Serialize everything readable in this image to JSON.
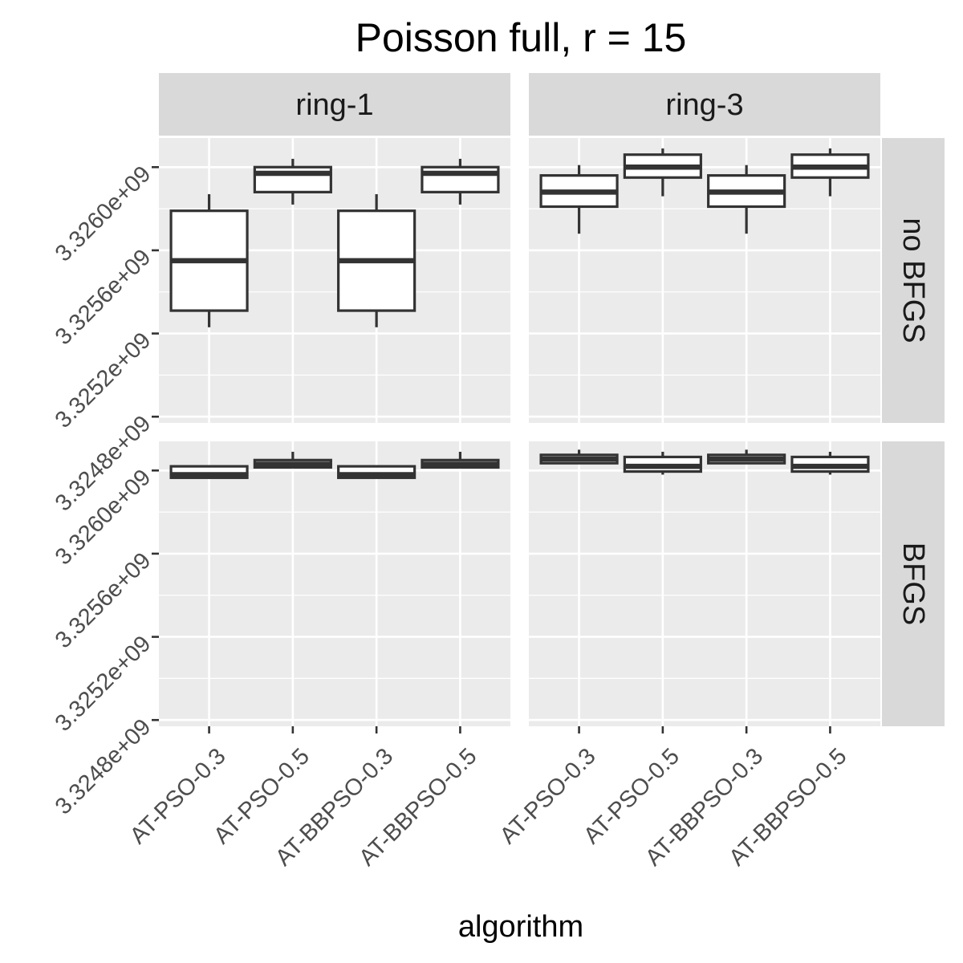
{
  "chart_data": {
    "type": "boxplot",
    "title": "Poisson full, r = 15",
    "xlabel": "algorithm",
    "ylabel": "",
    "categories": [
      "AT-PSO-0.3",
      "AT-PSO-0.5",
      "AT-BBPSO-0.3",
      "AT-BBPSO-0.5"
    ],
    "facet_cols": [
      "ring-1",
      "ring-3"
    ],
    "facet_rows": [
      "no BFGS",
      "BFGS"
    ],
    "y_ticks": [
      {
        "value": 3324800000,
        "label": "3.3248e+09"
      },
      {
        "value": 3325200000,
        "label": "3.3252e+09"
      },
      {
        "value": 3325600000,
        "label": "3.3256e+09"
      },
      {
        "value": 3326000000,
        "label": "3.3260e+09"
      }
    ],
    "ylim": [
      3324770000,
      3326140000
    ],
    "grid": true,
    "panels": [
      {
        "row": "no BFGS",
        "col": "ring-1",
        "boxes": [
          {
            "category": "AT-PSO-0.3",
            "min": 3325230000,
            "q1": 3325310000,
            "median": 3325550000,
            "q3": 3325790000,
            "max": 3325870000
          },
          {
            "category": "AT-PSO-0.5",
            "min": 3325820000,
            "q1": 3325880000,
            "median": 3325970000,
            "q3": 3326000000,
            "max": 3326040000
          },
          {
            "category": "AT-BBPSO-0.3",
            "min": 3325230000,
            "q1": 3325310000,
            "median": 3325550000,
            "q3": 3325790000,
            "max": 3325870000
          },
          {
            "category": "AT-BBPSO-0.5",
            "min": 3325820000,
            "q1": 3325880000,
            "median": 3325970000,
            "q3": 3326000000,
            "max": 3326040000
          }
        ]
      },
      {
        "row": "no BFGS",
        "col": "ring-3",
        "boxes": [
          {
            "category": "AT-PSO-0.3",
            "min": 3325680000,
            "q1": 3325810000,
            "median": 3325880000,
            "q3": 3325960000,
            "max": 3326010000
          },
          {
            "category": "AT-PSO-0.5",
            "min": 3325860000,
            "q1": 3325950000,
            "median": 3326000000,
            "q3": 3326060000,
            "max": 3326090000
          },
          {
            "category": "AT-BBPSO-0.3",
            "min": 3325680000,
            "q1": 3325810000,
            "median": 3325880000,
            "q3": 3325960000,
            "max": 3326010000
          },
          {
            "category": "AT-BBPSO-0.5",
            "min": 3325860000,
            "q1": 3325950000,
            "median": 3326000000,
            "q3": 3326060000,
            "max": 3326090000
          }
        ]
      },
      {
        "row": "BFGS",
        "col": "ring-1",
        "boxes": [
          {
            "category": "AT-PSO-0.3",
            "min": 3325960000,
            "q1": 3325965000,
            "median": 3325980000,
            "q3": 3326020000,
            "max": 3326025000
          },
          {
            "category": "AT-PSO-0.5",
            "min": 3326010000,
            "q1": 3326015000,
            "median": 3326030000,
            "q3": 3326050000,
            "max": 3326090000
          },
          {
            "category": "AT-BBPSO-0.3",
            "min": 3325960000,
            "q1": 3325965000,
            "median": 3325980000,
            "q3": 3326020000,
            "max": 3326025000
          },
          {
            "category": "AT-BBPSO-0.5",
            "min": 3326010000,
            "q1": 3326015000,
            "median": 3326030000,
            "q3": 3326050000,
            "max": 3326090000
          }
        ]
      },
      {
        "row": "BFGS",
        "col": "ring-3",
        "boxes": [
          {
            "category": "AT-PSO-0.3",
            "min": 3326030000,
            "q1": 3326035000,
            "median": 3326055000,
            "q3": 3326075000,
            "max": 3326100000
          },
          {
            "category": "AT-PSO-0.5",
            "min": 3325980000,
            "q1": 3325995000,
            "median": 3326020000,
            "q3": 3326065000,
            "max": 3326090000
          },
          {
            "category": "AT-BBPSO-0.3",
            "min": 3326030000,
            "q1": 3326035000,
            "median": 3326055000,
            "q3": 3326075000,
            "max": 3326100000
          },
          {
            "category": "AT-BBPSO-0.5",
            "min": 3325980000,
            "q1": 3325995000,
            "median": 3326020000,
            "q3": 3326065000,
            "max": 3326090000
          }
        ]
      }
    ]
  }
}
